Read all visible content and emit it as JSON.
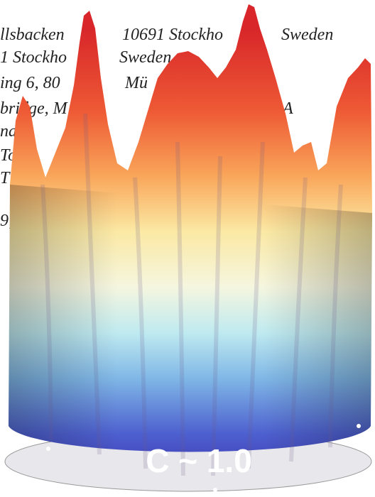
{
  "background_text": [
    "llsbacken",
    "10691 Stockho",
    "Sweden",
    "1 Stockho",
    "Sweden",
    "ing 6, 80",
    "Mü",
    "bridge, M",
    "A",
    "na",
    "Tor",
    "T",
    "9;"
  ],
  "overlay_label": "C ~ 1.0"
}
